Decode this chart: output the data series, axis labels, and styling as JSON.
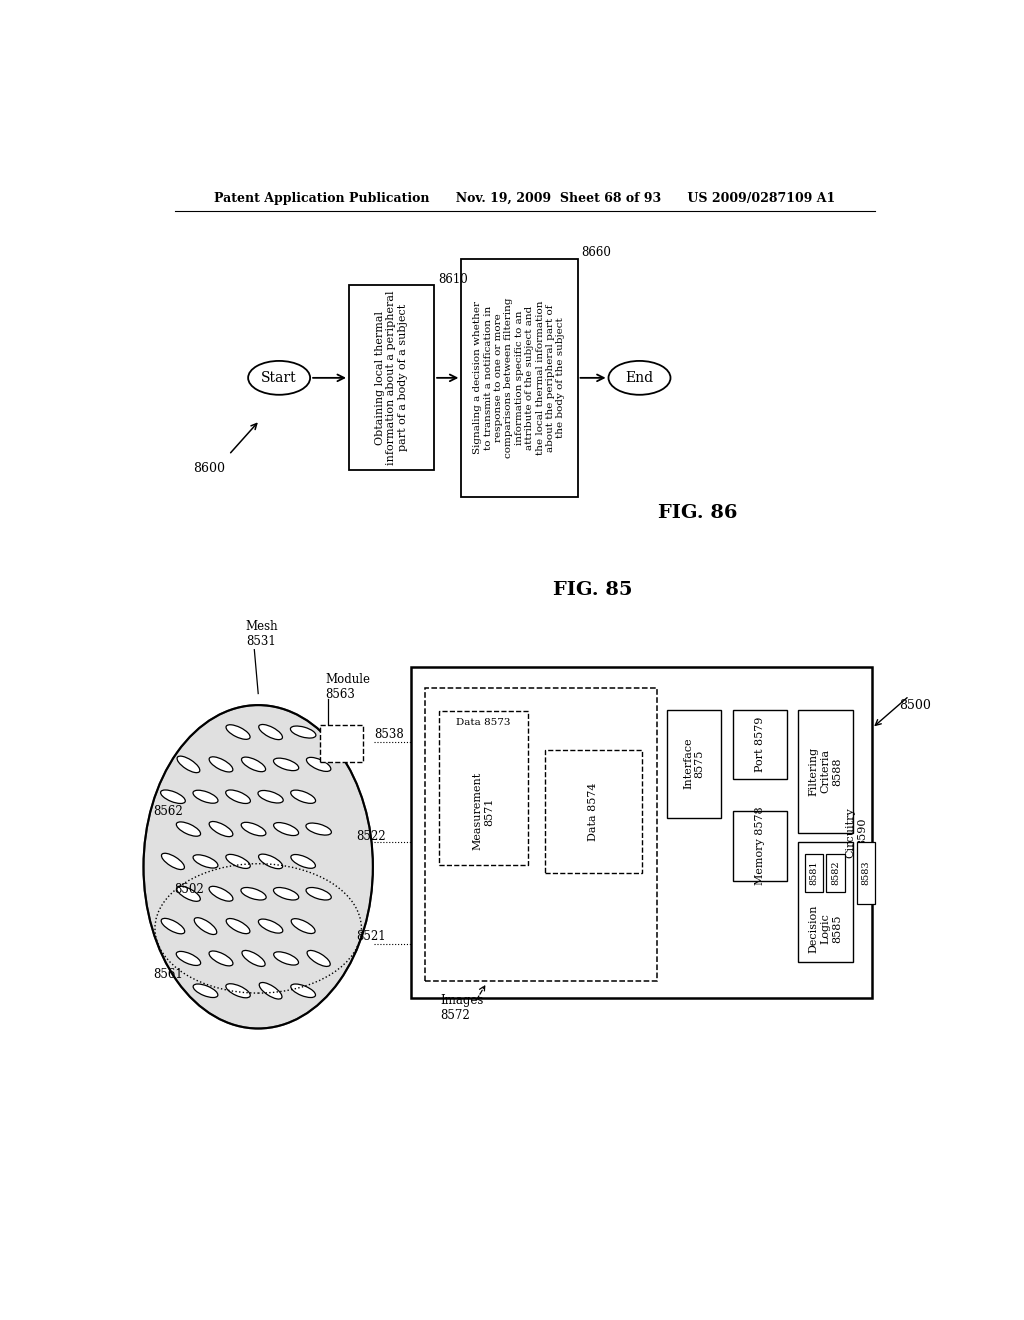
{
  "header": "Patent Application Publication      Nov. 19, 2009  Sheet 68 of 93      US 2009/0287109 A1",
  "fig86_label": "FIG. 86",
  "fig85_label": "FIG. 85",
  "flowchart": {
    "start_label": "Start",
    "end_label": "End",
    "box1_label": "Obtaining local thermal\ninformation about a peripheral\npart of a body of a subject",
    "box1_num": "8610",
    "box2_label": "Signaling a decision whether\nto transmit a notification in\nresponse to one or more\ncomparisons between filtering\ninformation specific to an\nattribute of the subject and\nthe local thermal information\nabout the peripheral part of\nthe body of the subject",
    "box2_num": "8660",
    "flow_num": "8600"
  },
  "diagram": {
    "main_box_num": "8500",
    "circuitry_label": "Circuitry\n8590",
    "mesh_label": "Mesh\n8531",
    "module_label": "Module\n8563",
    "images_label": "Images\n8572",
    "ref_8538": "8538",
    "ref_8562": "8562",
    "ref_8522": "8522",
    "ref_8521": "8521",
    "ref_8561": "8561",
    "ref_8502": "8502",
    "meas_label": "Measurement\n8571",
    "data_8573": "Data 8573",
    "data_8574": "Data 8574",
    "interface_label": "Interface\n8575",
    "port_label": "Port 8579",
    "memory_label": "Memory 8578",
    "filtering_label": "Filtering\nCriteria\n8588",
    "decision_label": "Decision\nLogic\n8585",
    "box_8581": "8581",
    "box_8582": "8582",
    "box_8583": "8583"
  }
}
